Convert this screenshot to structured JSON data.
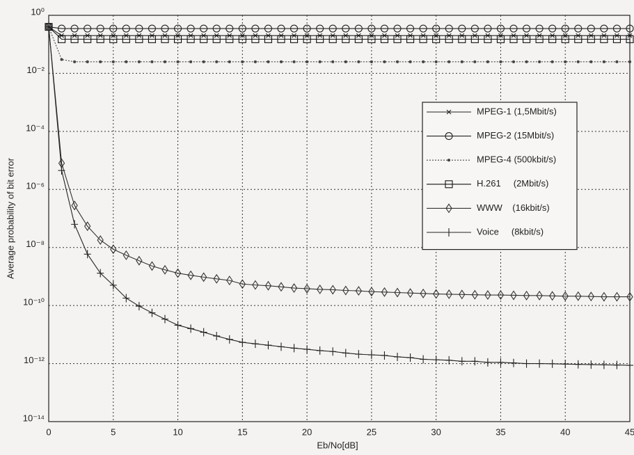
{
  "chart_data": {
    "type": "line",
    "log_y": true,
    "grid": true,
    "grid_style": "dotted",
    "legend_position": "upper right",
    "x_label": "Eb/No[dB]",
    "y_label": "Average probability of bit error",
    "xlim": [
      0,
      45
    ],
    "xticks": [
      0,
      5,
      10,
      15,
      20,
      25,
      30,
      35,
      40,
      45
    ],
    "ylim": [
      1e-14,
      1
    ],
    "yticks": [
      {
        "value": 1,
        "label": "10⁰"
      },
      {
        "value": 0.01,
        "label": "10⁻²"
      },
      {
        "value": 0.0001,
        "label": "10⁻⁴"
      },
      {
        "value": 1e-06,
        "label": "10⁻⁶"
      },
      {
        "value": 1e-08,
        "label": "10⁻⁸"
      },
      {
        "value": 1e-10,
        "label": "10⁻¹⁰"
      },
      {
        "value": 1e-12,
        "label": "10⁻¹²"
      },
      {
        "value": 1e-14,
        "label": "10⁻¹⁴"
      }
    ],
    "x": [
      0,
      1,
      2,
      3,
      4,
      5,
      6,
      7,
      8,
      9,
      10,
      11,
      12,
      13,
      14,
      15,
      16,
      17,
      18,
      19,
      20,
      21,
      22,
      23,
      24,
      25,
      26,
      27,
      28,
      29,
      30,
      31,
      32,
      33,
      34,
      35,
      36,
      37,
      38,
      39,
      40,
      41,
      42,
      43,
      44,
      45
    ],
    "series": [
      {
        "name": "MPEG-1 (1,5Mbit/s)",
        "color": "#222222",
        "marker": "asterisk",
        "dash": "solid",
        "values": [
          0.4,
          0.2,
          0.2,
          0.2,
          0.2,
          0.2,
          0.2,
          0.2,
          0.2,
          0.2,
          0.2,
          0.2,
          0.2,
          0.2,
          0.2,
          0.2,
          0.2,
          0.2,
          0.2,
          0.2,
          0.2,
          0.2,
          0.2,
          0.2,
          0.2,
          0.2,
          0.2,
          0.2,
          0.2,
          0.2,
          0.2,
          0.2,
          0.2,
          0.2,
          0.2,
          0.2,
          0.2,
          0.2,
          0.2,
          0.2,
          0.2,
          0.2,
          0.2,
          0.2,
          0.2,
          0.2
        ]
      },
      {
        "name": "MPEG-2 (15Mbit/s)",
        "color": "#222222",
        "marker": "circle",
        "dash": "solid",
        "values": [
          0.4,
          0.35,
          0.35,
          0.35,
          0.35,
          0.35,
          0.35,
          0.35,
          0.35,
          0.35,
          0.35,
          0.35,
          0.35,
          0.35,
          0.35,
          0.35,
          0.35,
          0.35,
          0.35,
          0.35,
          0.35,
          0.35,
          0.35,
          0.35,
          0.35,
          0.35,
          0.35,
          0.35,
          0.35,
          0.35,
          0.35,
          0.35,
          0.35,
          0.35,
          0.35,
          0.35,
          0.35,
          0.35,
          0.35,
          0.35,
          0.35,
          0.35,
          0.35,
          0.35,
          0.35,
          0.35
        ]
      },
      {
        "name": "MPEG-4 (500kbit/s)",
        "color": "#444444",
        "marker": "point",
        "dash": "dotted",
        "values": [
          0.4,
          0.03,
          0.025,
          0.025,
          0.025,
          0.025,
          0.025,
          0.025,
          0.025,
          0.025,
          0.025,
          0.025,
          0.025,
          0.025,
          0.025,
          0.025,
          0.025,
          0.025,
          0.025,
          0.025,
          0.025,
          0.025,
          0.025,
          0.025,
          0.025,
          0.025,
          0.025,
          0.025,
          0.025,
          0.025,
          0.025,
          0.025,
          0.025,
          0.025,
          0.025,
          0.025,
          0.025,
          0.025,
          0.025,
          0.025,
          0.025,
          0.025,
          0.025,
          0.025,
          0.025,
          0.025
        ]
      },
      {
        "name": "H.261     (2Mbit/s)",
        "color": "#111111",
        "marker": "square",
        "dash": "solid",
        "values": [
          0.4,
          0.15,
          0.15,
          0.15,
          0.15,
          0.15,
          0.15,
          0.15,
          0.15,
          0.15,
          0.15,
          0.15,
          0.15,
          0.15,
          0.15,
          0.15,
          0.15,
          0.15,
          0.15,
          0.15,
          0.15,
          0.15,
          0.15,
          0.15,
          0.15,
          0.15,
          0.15,
          0.15,
          0.15,
          0.15,
          0.15,
          0.15,
          0.15,
          0.15,
          0.15,
          0.15,
          0.15,
          0.15,
          0.15,
          0.15,
          0.15,
          0.15,
          0.15,
          0.15,
          0.15,
          0.15
        ]
      },
      {
        "name": "WWW    (16kbit/s)",
        "color": "#333333",
        "marker": "diamond",
        "dash": "solid",
        "values": [
          0.4,
          8e-06,
          2.8e-07,
          5.4e-08,
          1.8e-08,
          8.7e-09,
          5.4e-09,
          3.5e-09,
          2.3e-09,
          1.7e-09,
          1.3e-09,
          1.1e-09,
          9.5e-10,
          8.3e-10,
          7.3e-10,
          5.5e-10,
          5.1e-10,
          4.8e-10,
          4.4e-10,
          4e-10,
          3.8e-10,
          3.6e-10,
          3.5e-10,
          3.3e-10,
          3.2e-10,
          3e-10,
          2.9e-10,
          2.8e-10,
          2.7e-10,
          2.6e-10,
          2.5e-10,
          2.45e-10,
          2.4e-10,
          2.35e-10,
          2.3e-10,
          2.3e-10,
          2.25e-10,
          2.2e-10,
          2.2e-10,
          2.15e-10,
          2.1e-10,
          2.1e-10,
          2.05e-10,
          2e-10,
          2e-10,
          2e-10
        ]
      },
      {
        "name": "Voice     (8kbit/s)",
        "color": "#222222",
        "marker": "plus",
        "dash": "solid",
        "values": [
          0.4,
          4.5e-06,
          6.3e-08,
          5.9e-09,
          1.3e-09,
          5e-10,
          1.8e-10,
          9.5e-11,
          5.6e-11,
          3.4e-11,
          2.1e-11,
          1.6e-11,
          1.2e-11,
          8.9e-12,
          6.8e-12,
          5.4e-12,
          4.8e-12,
          4.3e-12,
          3.8e-12,
          3.4e-12,
          3.1e-12,
          2.8e-12,
          2.6e-12,
          2.3e-12,
          2.1e-12,
          2e-12,
          1.9e-12,
          1.7e-12,
          1.6e-12,
          1.4e-12,
          1.35e-12,
          1.3e-12,
          1.2e-12,
          1.2e-12,
          1.1e-12,
          1.1e-12,
          1.05e-12,
          1e-12,
          1e-12,
          9.8e-13,
          9.6e-13,
          9.4e-13,
          9.2e-13,
          9e-13,
          8.9e-13,
          8.7e-13
        ]
      }
    ]
  }
}
